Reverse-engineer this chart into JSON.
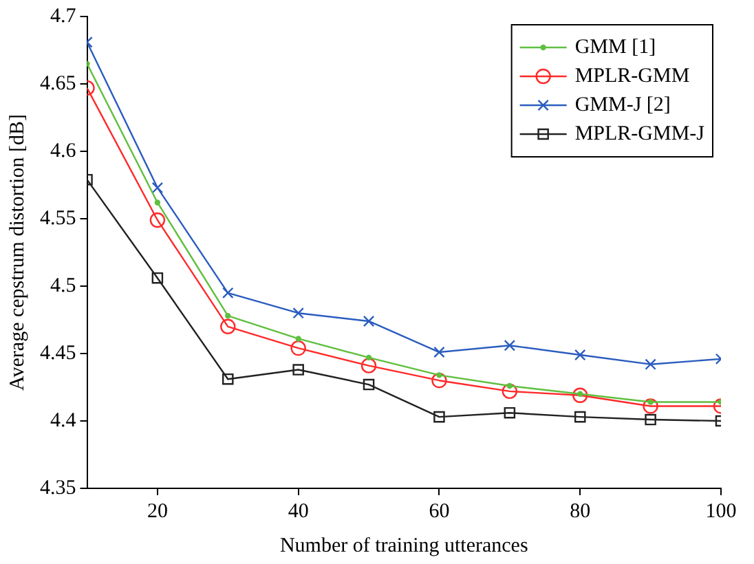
{
  "chart_data": {
    "type": "line",
    "xlabel": "Number of training utterances",
    "ylabel": "Average cepstrum distortion [dB]",
    "x": [
      10,
      20,
      30,
      40,
      50,
      60,
      70,
      80,
      90,
      100
    ],
    "xlim": [
      10,
      100
    ],
    "xticks": [
      20,
      40,
      60,
      80,
      100
    ],
    "ylim": [
      4.35,
      4.7
    ],
    "yticks": [
      4.35,
      4.4,
      4.45,
      4.5,
      4.55,
      4.6,
      4.65,
      4.7
    ],
    "grid": false,
    "legend": "top right",
    "line_style": "solid",
    "series": [
      {
        "name": "GMM [1]",
        "color": "#5fbf3f",
        "marker": "circle",
        "values": [
          4.665,
          4.562,
          4.478,
          4.461,
          4.447,
          4.434,
          4.426,
          4.42,
          4.414,
          4.414
        ]
      },
      {
        "name": "MPLR-GMM",
        "color": "#ff2a2a",
        "marker": "circle",
        "values": [
          4.647,
          4.549,
          4.47,
          4.454,
          4.441,
          4.43,
          4.422,
          4.419,
          4.411,
          4.411
        ]
      },
      {
        "name": "GMM-J [2]",
        "color": "#2a5cbf",
        "marker": "cross",
        "values": [
          4.681,
          4.573,
          4.495,
          4.48,
          4.474,
          4.451,
          4.456,
          4.449,
          4.442,
          4.446
        ]
      },
      {
        "name": "MPLR-GMM-J",
        "color": "#222222",
        "marker": "square",
        "values": [
          4.579,
          4.506,
          4.431,
          4.438,
          4.427,
          4.403,
          4.406,
          4.403,
          4.401,
          4.4
        ]
      }
    ]
  }
}
